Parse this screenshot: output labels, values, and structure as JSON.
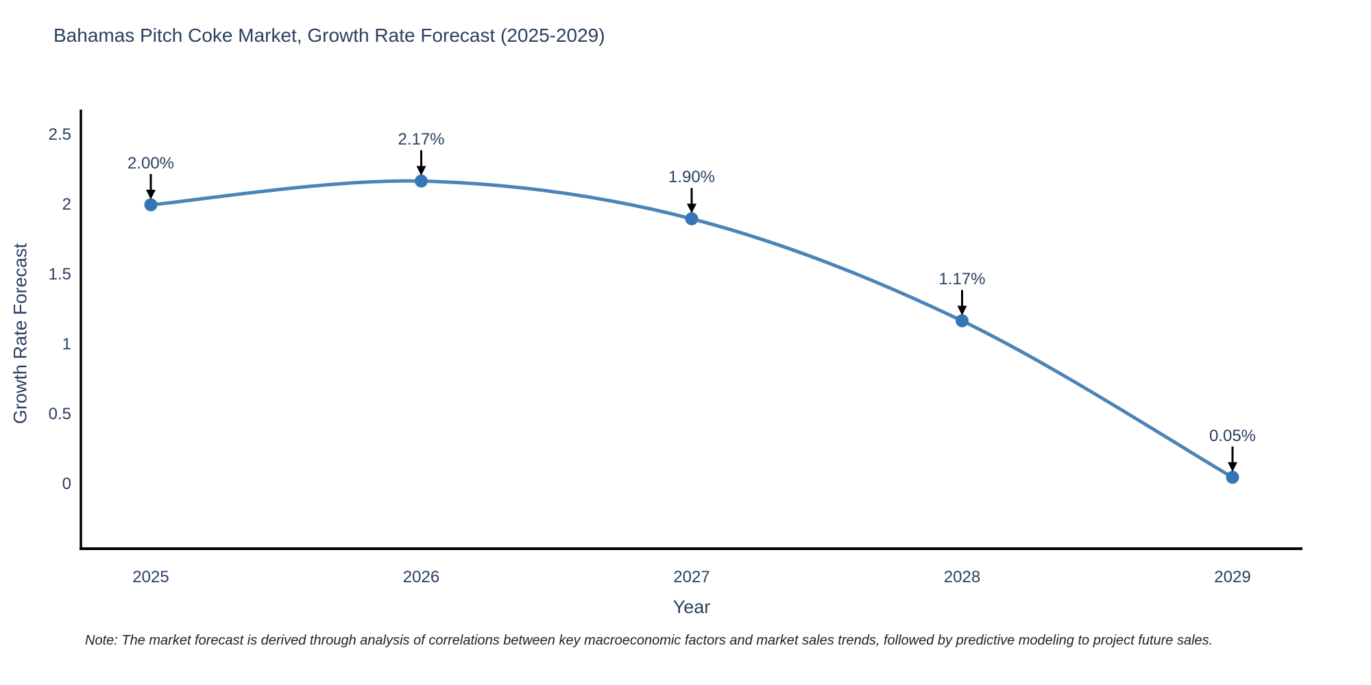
{
  "title": "Bahamas Pitch Coke Market, Growth Rate Forecast (2025-2029)",
  "note": "Note: The market forecast is derived through analysis of correlations between key macroeconomic factors and market sales trends, followed by predictive modeling to project future sales.",
  "chart_data": {
    "type": "line",
    "title": "Bahamas Pitch Coke Market, Growth Rate Forecast (2025-2029)",
    "xlabel": "Year",
    "ylabel": "Growth Rate Forecast",
    "categories": [
      "2025",
      "2026",
      "2027",
      "2028",
      "2029"
    ],
    "values": [
      2.0,
      2.17,
      1.9,
      1.17,
      0.05
    ],
    "point_labels": [
      "2.00%",
      "2.17%",
      "1.90%",
      "1.17%",
      "0.05%"
    ],
    "yticks": [
      2.5,
      2,
      1.5,
      1,
      0.5,
      0
    ],
    "ytick_labels": [
      "2.5",
      "2",
      "1.5",
      "1",
      "0.5",
      "0"
    ],
    "ylim": [
      -0.46,
      2.68
    ],
    "grid": false,
    "legend": "none",
    "line_shape": "spline",
    "annotations_have_arrows": true,
    "colors": {
      "line": "#4a84b8",
      "marker": "#3577b4",
      "axis": "#000000",
      "text": "#2a3f5f",
      "arrow": "#000000",
      "background": "#ffffff"
    }
  }
}
